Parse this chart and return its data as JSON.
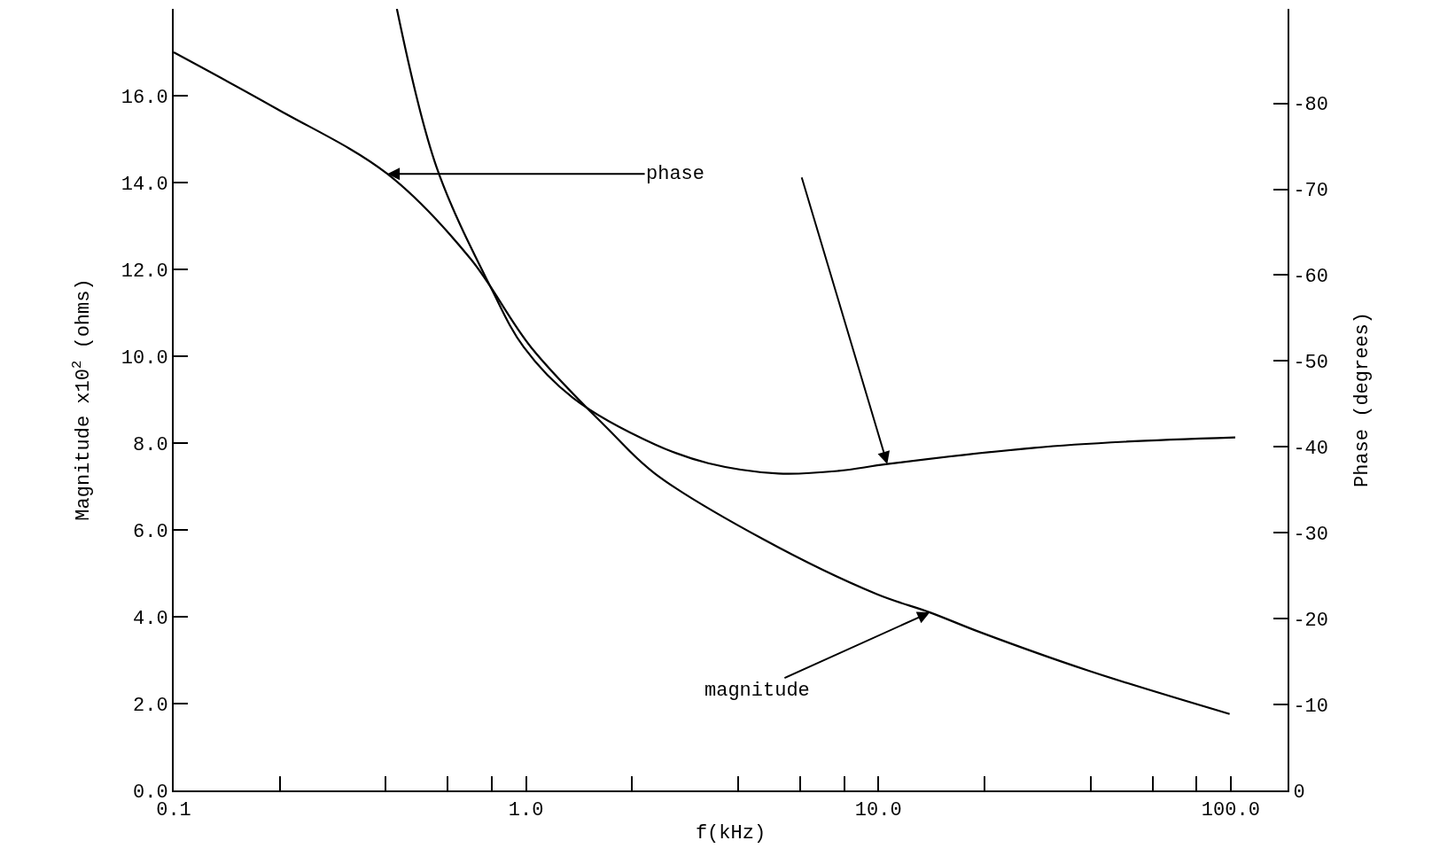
{
  "chart_data": {
    "type": "line",
    "xlabel": "f(kHz)",
    "ylabel": "Magnitude x10$^{2}$ (ohms)",
    "y2label": "Phase (degrees)",
    "log": "x",
    "xlim": [
      0.1,
      145
    ],
    "xticks": [
      {
        "value": 0.1,
        "label": "0.1"
      },
      {
        "value": 0.2,
        "label": null
      },
      {
        "value": 0.4,
        "label": null
      },
      {
        "value": 0.6,
        "label": null
      },
      {
        "value": 0.8,
        "label": null
      },
      {
        "value": 1,
        "label": "1.0"
      },
      {
        "value": 2,
        "label": null
      },
      {
        "value": 4,
        "label": null
      },
      {
        "value": 6,
        "label": null
      },
      {
        "value": 8,
        "label": null
      },
      {
        "value": 10,
        "label": "10.0"
      },
      {
        "value": 20,
        "label": null
      },
      {
        "value": 40,
        "label": null
      },
      {
        "value": 60,
        "label": null
      },
      {
        "value": 80,
        "label": null
      },
      {
        "value": 100,
        "label": "100.0"
      }
    ],
    "ylim": [
      0,
      18
    ],
    "yticks": [
      {
        "value": 0,
        "label": "0.0"
      },
      {
        "value": 2,
        "label": "2.0"
      },
      {
        "value": 4,
        "label": "4.0"
      },
      {
        "value": 6,
        "label": "6.0"
      },
      {
        "value": 8,
        "label": "8.0"
      },
      {
        "value": 10,
        "label": "10.0"
      },
      {
        "value": 12,
        "label": "12.0"
      },
      {
        "value": 14,
        "label": "14.0"
      },
      {
        "value": 16,
        "label": "16.0"
      }
    ],
    "y2lim": [
      0,
      -91
    ],
    "y2ticks": [
      0,
      -10,
      -20,
      -30,
      -40,
      -50,
      -60,
      -70,
      -80
    ],
    "grid": false,
    "marker": "none",
    "line_style": "solid",
    "series": [
      {
        "color": "#000000",
        "x": [
          0.1,
          0.196,
          0.404,
          0.695,
          1.035,
          1.72,
          2.32,
          4.7,
          9.9,
          14,
          19.5,
          39.4,
          99.3
        ],
        "values": [
          17.0,
          15.7,
          14.2,
          12.25,
          10.2,
          8.3,
          7.3,
          5.79,
          4.52,
          4.1,
          3.64,
          2.76,
          1.76
        ]
      },
      {
        "color": "#000000",
        "axis": "y2",
        "x": [
          0.43,
          0.557,
          0.796,
          0.986,
          1.36,
          2.32,
          3.29,
          5.2,
          7.7,
          10.6,
          27.7,
          50,
          103
        ],
        "values": [
          -91,
          -72.6,
          -58.5,
          -51.6,
          -45.7,
          -40.3,
          -38.1,
          -36.9,
          -37.2,
          -38.0,
          -39.9,
          -40.6,
          -41.1
        ]
      }
    ],
    "annotations": [
      {
        "text": "phase",
        "x": 0.404,
        "y": 14.2
      },
      {
        "text": "magnitude",
        "x": 14,
        "y": 4.1
      }
    ]
  }
}
